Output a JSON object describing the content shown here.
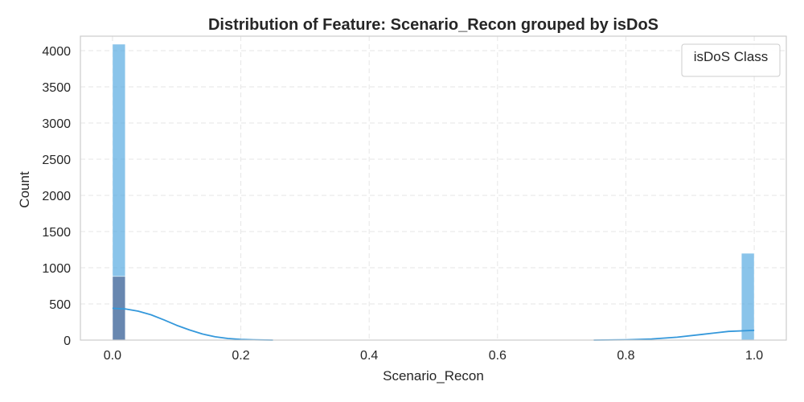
{
  "chart_data": {
    "type": "histogram",
    "title": "Distribution of Feature: Scenario_Recon grouped by isDoS",
    "xlabel": "Scenario_Recon",
    "ylabel": "Count",
    "xlim": [
      -0.05,
      1.05
    ],
    "ylim": [
      0,
      4200
    ],
    "xticks": [
      0.0,
      0.2,
      0.4,
      0.6,
      0.8,
      1.0
    ],
    "xtick_labels": [
      "0.0",
      "0.2",
      "0.4",
      "0.6",
      "0.8",
      "1.0"
    ],
    "yticks": [
      0,
      500,
      1000,
      1500,
      2000,
      2500,
      3000,
      3500,
      4000
    ],
    "ytick_labels": [
      "0",
      "500",
      "1000",
      "1500",
      "2000",
      "2500",
      "3000",
      "3500",
      "4000"
    ],
    "grid": true,
    "legend": {
      "title": "isDoS Class",
      "placement": "top-right",
      "entries": []
    },
    "bin_width": 0.02,
    "bars": [
      {
        "x_start": 0.0,
        "x_end": 0.02,
        "count": 4090,
        "color": "#5dade2",
        "opacity": 0.72
      },
      {
        "x_start": 0.0,
        "x_end": 0.02,
        "count": 880,
        "color": "#5b6f9a",
        "opacity": 0.72
      },
      {
        "x_start": 0.98,
        "x_end": 1.0,
        "count": 1200,
        "color": "#5dade2",
        "opacity": 0.72
      }
    ],
    "kde": {
      "color": "#3498db",
      "segments": [
        {
          "x": [
            0.0,
            0.02,
            0.04,
            0.06,
            0.08,
            0.1,
            0.12,
            0.14,
            0.16,
            0.18,
            0.2,
            0.22,
            0.25
          ],
          "y": [
            440,
            430,
            400,
            350,
            280,
            205,
            140,
            85,
            45,
            22,
            10,
            4,
            0
          ]
        },
        {
          "x": [
            0.75,
            0.8,
            0.84,
            0.88,
            0.92,
            0.96,
            1.0
          ],
          "y": [
            0,
            5,
            15,
            40,
            80,
            120,
            135
          ]
        }
      ]
    }
  }
}
